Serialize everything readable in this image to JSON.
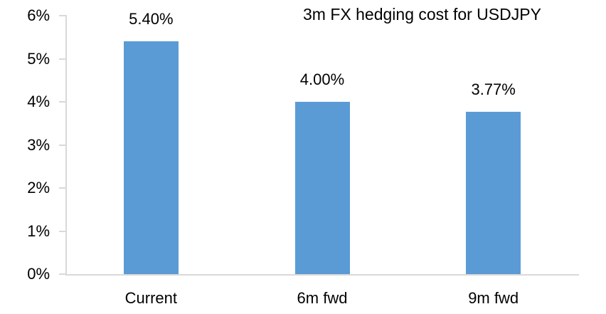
{
  "chart_data": {
    "type": "bar",
    "title": "3m FX hedging cost for USDJPY",
    "categories": [
      "Current",
      "6m fwd",
      "9m fwd"
    ],
    "values": [
      5.4,
      4.0,
      3.77
    ],
    "value_labels": [
      "5.40%",
      "4.00%",
      "3.77%"
    ],
    "y_tick_values": [
      0,
      1,
      2,
      3,
      4,
      5,
      6
    ],
    "y_tick_labels": [
      "0%",
      "1%",
      "2%",
      "3%",
      "4%",
      "5%",
      "6%"
    ],
    "ylim": [
      0,
      6
    ],
    "xlabel": "",
    "ylabel": "",
    "grid": false,
    "legend": false
  },
  "colors": {
    "bar": "#5B9BD5",
    "axis": "#D9D9D9",
    "text": "#000000"
  }
}
